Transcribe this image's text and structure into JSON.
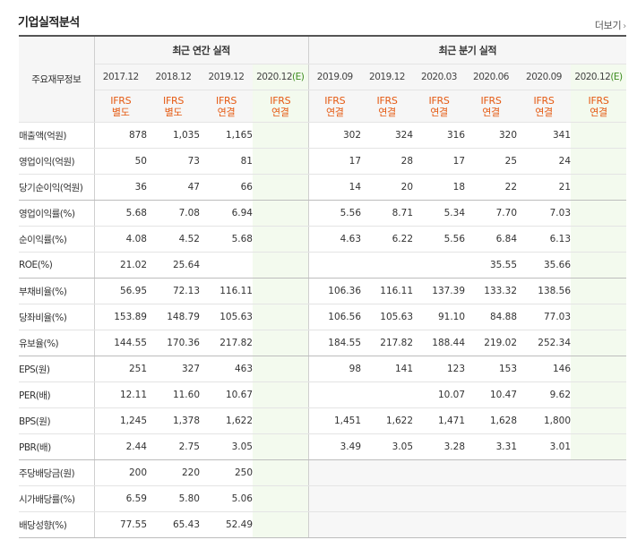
{
  "header": {
    "title": "기업실적분석",
    "more_label": "더보기"
  },
  "table": {
    "row_header_label": "주요재무정보",
    "groups": {
      "annual": "최근 연간 실적",
      "quarterly": "최근 분기 실적"
    },
    "annual_periods": [
      {
        "label": "2017.12",
        "estimate": "",
        "ifrs": "IFRS",
        "basis": "별도"
      },
      {
        "label": "2018.12",
        "estimate": "",
        "ifrs": "IFRS",
        "basis": "별도"
      },
      {
        "label": "2019.12",
        "estimate": "",
        "ifrs": "IFRS",
        "basis": "연결"
      },
      {
        "label": "2020.12",
        "estimate": "(E)",
        "ifrs": "IFRS",
        "basis": "연결"
      }
    ],
    "quarter_periods": [
      {
        "label": "2019.09",
        "estimate": "",
        "ifrs": "IFRS",
        "basis": "연결"
      },
      {
        "label": "2019.12",
        "estimate": "",
        "ifrs": "IFRS",
        "basis": "연결"
      },
      {
        "label": "2020.03",
        "estimate": "",
        "ifrs": "IFRS",
        "basis": "연결"
      },
      {
        "label": "2020.06",
        "estimate": "",
        "ifrs": "IFRS",
        "basis": "연결"
      },
      {
        "label": "2020.09",
        "estimate": "",
        "ifrs": "IFRS",
        "basis": "연결"
      },
      {
        "label": "2020.12",
        "estimate": "(E)",
        "ifrs": "IFRS",
        "basis": "연결"
      }
    ],
    "rows": [
      {
        "label": "매출액(억원)",
        "annual": [
          "878",
          "1,035",
          "1,165",
          ""
        ],
        "quarter": [
          "302",
          "324",
          "316",
          "320",
          "341",
          ""
        ],
        "group_end": false
      },
      {
        "label": "영업이익(억원)",
        "annual": [
          "50",
          "73",
          "81",
          ""
        ],
        "quarter": [
          "17",
          "28",
          "17",
          "25",
          "24",
          ""
        ],
        "group_end": false
      },
      {
        "label": "당기순이익(억원)",
        "annual": [
          "36",
          "47",
          "66",
          ""
        ],
        "quarter": [
          "14",
          "20",
          "18",
          "22",
          "21",
          ""
        ],
        "group_end": true
      },
      {
        "label": "영업이익률(%)",
        "annual": [
          "5.68",
          "7.08",
          "6.94",
          ""
        ],
        "quarter": [
          "5.56",
          "8.71",
          "5.34",
          "7.70",
          "7.03",
          ""
        ],
        "group_end": false
      },
      {
        "label": "순이익률(%)",
        "annual": [
          "4.08",
          "4.52",
          "5.68",
          ""
        ],
        "quarter": [
          "4.63",
          "6.22",
          "5.56",
          "6.84",
          "6.13",
          ""
        ],
        "group_end": false
      },
      {
        "label": "ROE(%)",
        "annual": [
          "21.02",
          "25.64",
          "",
          ""
        ],
        "quarter": [
          "",
          "",
          "",
          "35.55",
          "35.66",
          ""
        ],
        "group_end": true
      },
      {
        "label": "부채비율(%)",
        "annual": [
          "56.95",
          "72.13",
          "116.11",
          ""
        ],
        "quarter": [
          "106.36",
          "116.11",
          "137.39",
          "133.32",
          "138.56",
          ""
        ],
        "group_end": false
      },
      {
        "label": "당좌비율(%)",
        "annual": [
          "153.89",
          "148.79",
          "105.63",
          ""
        ],
        "quarter": [
          "106.56",
          "105.63",
          "91.10",
          "84.88",
          "77.03",
          ""
        ],
        "group_end": false
      },
      {
        "label": "유보율(%)",
        "annual": [
          "144.55",
          "170.36",
          "217.82",
          ""
        ],
        "quarter": [
          "184.55",
          "217.82",
          "188.44",
          "219.02",
          "252.34",
          ""
        ],
        "group_end": true
      },
      {
        "label": "EPS(원)",
        "annual": [
          "251",
          "327",
          "463",
          ""
        ],
        "quarter": [
          "98",
          "141",
          "123",
          "153",
          "146",
          ""
        ],
        "group_end": false
      },
      {
        "label": "PER(배)",
        "annual": [
          "12.11",
          "11.60",
          "10.67",
          ""
        ],
        "quarter": [
          "",
          "",
          "10.07",
          "10.47",
          "9.62",
          ""
        ],
        "group_end": false
      },
      {
        "label": "BPS(원)",
        "annual": [
          "1,245",
          "1,378",
          "1,622",
          ""
        ],
        "quarter": [
          "1,451",
          "1,622",
          "1,471",
          "1,628",
          "1,800",
          ""
        ],
        "group_end": false
      },
      {
        "label": "PBR(배)",
        "annual": [
          "2.44",
          "2.75",
          "3.05",
          ""
        ],
        "quarter": [
          "3.49",
          "3.05",
          "3.28",
          "3.31",
          "3.01",
          ""
        ],
        "group_end": true
      },
      {
        "label": "주당배당금(원)",
        "annual": [
          "200",
          "220",
          "250",
          ""
        ],
        "quarter": null,
        "group_end": false
      },
      {
        "label": "시가배당률(%)",
        "annual": [
          "6.59",
          "5.80",
          "5.06",
          ""
        ],
        "quarter": null,
        "group_end": false
      },
      {
        "label": "배당성향(%)",
        "annual": [
          "77.55",
          "65.43",
          "52.49",
          ""
        ],
        "quarter": null,
        "group_end": true
      }
    ]
  },
  "colors": {
    "ifrs": "#e55a13",
    "estimate_bg": "#f3faee",
    "estimate_mark": "#3c8c1e",
    "header_bg": "#f6f6f6"
  }
}
